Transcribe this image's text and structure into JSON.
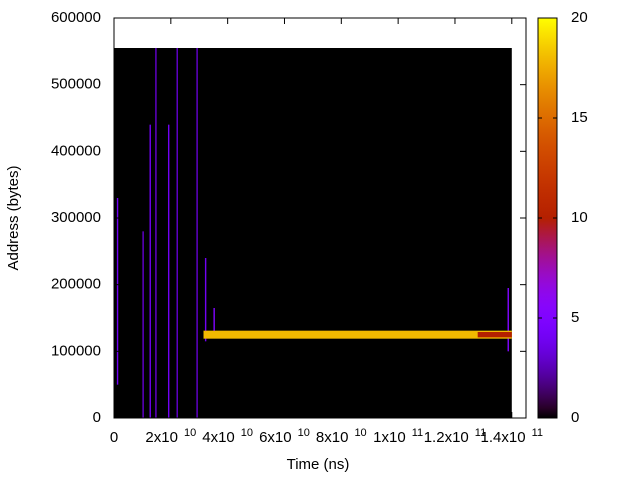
{
  "chart_data": {
    "type": "heatmap",
    "xlabel": "Time (ns)",
    "ylabel": "Address (bytes)",
    "xlim": [
      0,
      145000000000
    ],
    "ylim": [
      0,
      600000
    ],
    "xticks": [
      0,
      {
        "value": 20000000000,
        "label": "2x10",
        "exponent": "10"
      },
      {
        "value": 40000000000,
        "label": "4x10",
        "exponent": "10"
      },
      {
        "value": 60000000000,
        "label": "6x10",
        "exponent": "10"
      },
      {
        "value": 80000000000,
        "label": "8x10",
        "exponent": "10"
      },
      {
        "value": 100000000000,
        "label": "1x10",
        "exponent": "11"
      },
      {
        "value": 120000000000,
        "label": "1.2x10",
        "exponent": "11"
      },
      {
        "value": 140000000000,
        "label": "1.4x10",
        "exponent": "11"
      }
    ],
    "yticks": [
      0,
      100000,
      200000,
      300000,
      400000,
      500000,
      600000
    ],
    "cblim": [
      0,
      20
    ],
    "cbticks": [
      0,
      5,
      10,
      15,
      20
    ],
    "cells": [
      {
        "x": [
          0,
          140000000000
        ],
        "y": [
          0,
          555000
        ],
        "value": 0
      },
      {
        "x": [
          1000000000,
          1500000000
        ],
        "y": [
          50000,
          330000
        ],
        "value": 4
      },
      {
        "x": [
          10000000000,
          10500000000
        ],
        "y": [
          0,
          280000
        ],
        "value": 3
      },
      {
        "x": [
          12500000000,
          13000000000
        ],
        "y": [
          0,
          440000
        ],
        "value": 4
      },
      {
        "x": [
          14500000000,
          15000000000
        ],
        "y": [
          0,
          555000
        ],
        "value": 3
      },
      {
        "x": [
          19000000000,
          19500000000
        ],
        "y": [
          0,
          440000
        ],
        "value": 4
      },
      {
        "x": [
          22000000000,
          22500000000
        ],
        "y": [
          0,
          555000
        ],
        "value": 3
      },
      {
        "x": [
          29000000000,
          29500000000
        ],
        "y": [
          0,
          555000
        ],
        "value": 3
      },
      {
        "x": [
          32000000000,
          32500000000
        ],
        "y": [
          115000,
          240000
        ],
        "value": 4
      },
      {
        "x": [
          35000000000,
          35500000000
        ],
        "y": [
          120000,
          165000
        ],
        "value": 5
      },
      {
        "x": [
          138500000000,
          139000000000
        ],
        "y": [
          100000,
          195000
        ],
        "value": 5
      },
      {
        "x": [
          31500000000,
          140000000000
        ],
        "y": [
          119000,
          131000
        ],
        "value": 18
      },
      {
        "x": [
          128000000000,
          140000000000
        ],
        "y": [
          121000,
          129000
        ],
        "value": 10
      }
    ]
  }
}
